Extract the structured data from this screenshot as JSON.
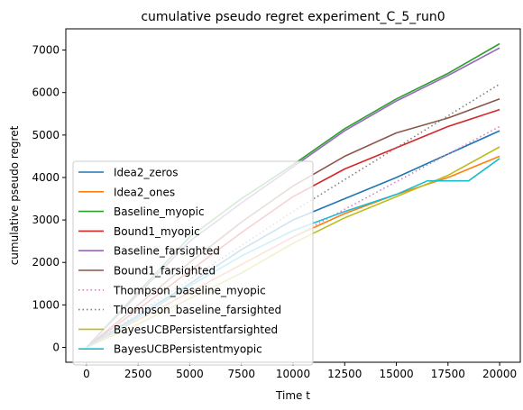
{
  "chart_data": {
    "type": "line",
    "title": "cumulative pseudo regret experiment_C_5_run0",
    "xlabel": "Time t",
    "ylabel": "cumulative pseudo regret",
    "xlim": [
      -1000,
      21000
    ],
    "ylim": [
      -350,
      7500
    ],
    "xticks": [
      0,
      2500,
      5000,
      7500,
      10000,
      12500,
      15000,
      17500,
      20000
    ],
    "yticks": [
      0,
      1000,
      2000,
      3000,
      4000,
      5000,
      6000,
      7000
    ],
    "legend_position": "lower-left",
    "grid": false,
    "series": [
      {
        "name": "Idea2_zeros",
        "color": "#1f77b4",
        "dash": "solid",
        "x": [
          0,
          2500,
          5000,
          7500,
          10000,
          12500,
          15000,
          17500,
          20000
        ],
        "y": [
          0,
          750,
          1500,
          2300,
          3000,
          3500,
          4000,
          4550,
          5100
        ]
      },
      {
        "name": "Idea2_ones",
        "color": "#ff7f0e",
        "dash": "solid",
        "x": [
          0,
          2500,
          5000,
          7500,
          10000,
          12500,
          15000,
          17500,
          20000
        ],
        "y": [
          0,
          650,
          1300,
          1950,
          2600,
          3150,
          3600,
          4000,
          4500
        ]
      },
      {
        "name": "Baseline_myopic",
        "color": "#2ca02c",
        "dash": "solid",
        "x": [
          0,
          2500,
          5000,
          7500,
          10000,
          12500,
          15000,
          17500,
          20000
        ],
        "y": [
          0,
          1300,
          2600,
          3500,
          4300,
          5150,
          5850,
          6450,
          7150
        ]
      },
      {
        "name": "Bound1_myopic",
        "color": "#d62728",
        "dash": "solid",
        "x": [
          0,
          2500,
          5000,
          7500,
          10000,
          12500,
          15000,
          17500,
          20000
        ],
        "y": [
          0,
          900,
          1800,
          2700,
          3550,
          4200,
          4700,
          5200,
          5600
        ]
      },
      {
        "name": "Baseline_farsighted",
        "color": "#9467bd",
        "dash": "solid",
        "x": [
          0,
          2500,
          5000,
          7500,
          10000,
          12500,
          15000,
          17500,
          20000
        ],
        "y": [
          0,
          1250,
          2500,
          3400,
          4250,
          5100,
          5800,
          6400,
          7050
        ]
      },
      {
        "name": "Bound1_farsighted",
        "color": "#8c564b",
        "dash": "solid",
        "x": [
          0,
          2500,
          5000,
          7500,
          10000,
          12500,
          15000,
          17500,
          20000
        ],
        "y": [
          0,
          1000,
          2000,
          2950,
          3800,
          4500,
          5050,
          5400,
          5850
        ]
      },
      {
        "name": "Thompson_baseline_myopic",
        "color": "#e377c2",
        "dash": "dotted",
        "x": [
          0,
          2500,
          5000,
          7500,
          10000,
          12500,
          15000,
          17500,
          20000
        ],
        "y": [
          0,
          650,
          1300,
          1950,
          2600,
          3250,
          3900,
          4550,
          5200
        ]
      },
      {
        "name": "Thompson_baseline_farsighted",
        "color": "#7f7f7f",
        "dash": "dotted",
        "x": [
          0,
          2500,
          5000,
          7500,
          10000,
          12500,
          15000,
          17500,
          20000
        ],
        "y": [
          0,
          800,
          1600,
          2400,
          3200,
          3950,
          4700,
          5450,
          6200
        ]
      },
      {
        "name": "BayesUCBPersistentfarsighted",
        "color": "#bcbd22",
        "dash": "solid",
        "x": [
          0,
          2500,
          5000,
          7500,
          10000,
          12500,
          15000,
          17500,
          20000
        ],
        "y": [
          0,
          550,
          1150,
          1750,
          2450,
          3050,
          3550,
          4050,
          4720
        ]
      },
      {
        "name": "BayesUCBPersistentmyopic",
        "color": "#17becf",
        "dash": "solid",
        "x": [
          0,
          2500,
          5000,
          7500,
          10000,
          12500,
          15000,
          16500,
          18500,
          20000
        ],
        "y": [
          0,
          700,
          1450,
          2150,
          2750,
          3200,
          3600,
          3920,
          3920,
          4450
        ]
      }
    ]
  }
}
